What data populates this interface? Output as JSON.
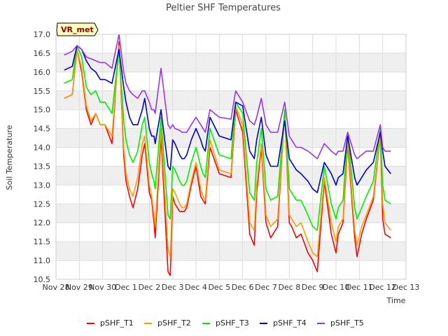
{
  "chart_data": {
    "type": "line",
    "title": "Peltier SHF Temperatures",
    "xlabel": "Time",
    "ylabel": "Soil Temperature",
    "badge": "VR_met",
    "ylim": [
      10.5,
      17.0
    ],
    "xlim": [
      0,
      15
    ],
    "yticks": [
      10.5,
      11.0,
      11.5,
      12.0,
      12.5,
      13.0,
      13.5,
      14.0,
      14.5,
      15.0,
      15.5,
      16.0,
      16.5,
      17.0
    ],
    "ytick_labels": [
      "10.5",
      "11.0",
      "11.5",
      "12.0",
      "12.5",
      "13.0",
      "13.5",
      "14.0",
      "14.5",
      "15.0",
      "15.5",
      "16.0",
      "16.5",
      "17.0"
    ],
    "xticks": [
      0,
      1,
      2,
      3,
      4,
      5,
      6,
      7,
      8,
      9,
      10,
      11,
      12,
      13,
      14,
      15
    ],
    "xtick_labels": [
      "Nov 28",
      "Nov 29",
      "Nov 30",
      "Dec 1",
      "Dec 2",
      "Dec 3",
      "Dec 4",
      "Dec 5",
      "Dec 6",
      "Dec 7",
      "Dec 8",
      "Dec 9",
      "Dec 10",
      "Dec 11",
      "Dec 12",
      "Dec 13"
    ],
    "grid": true,
    "legend_position": "bottom",
    "colors": {
      "band": "#efefef",
      "grid": "#dddddd"
    },
    "series": [
      {
        "name": "pSHF_T1",
        "color": "#ff0000",
        "x": [
          0.35,
          0.7,
          0.9,
          1.1,
          1.3,
          1.5,
          1.7,
          1.9,
          2.1,
          2.4,
          2.7,
          2.9,
          3.0,
          3.15,
          3.3,
          3.5,
          3.7,
          3.8,
          4.0,
          4.1,
          4.2,
          4.25,
          4.5,
          4.8,
          4.9,
          5.0,
          5.1,
          5.3,
          5.4,
          5.5,
          5.6,
          5.8,
          6.0,
          6.2,
          6.3,
          6.4,
          6.6,
          7.0,
          7.5,
          7.7,
          8.0,
          8.3,
          8.5,
          8.6,
          8.8,
          9.0,
          9.2,
          9.5,
          9.8,
          10.0,
          10.1,
          10.3,
          10.5,
          10.8,
          11.0,
          11.2,
          11.5,
          11.8,
          12.0,
          12.1,
          12.3,
          12.5,
          12.8,
          12.9,
          13.1,
          13.3,
          13.6,
          13.9,
          14.0,
          14.1,
          14.35
        ],
        "y": [
          15.3,
          15.4,
          16.6,
          16.0,
          15.0,
          14.6,
          14.9,
          14.6,
          14.6,
          14.1,
          16.8,
          13.8,
          13.1,
          12.7,
          12.4,
          12.9,
          13.8,
          14.1,
          12.8,
          12.6,
          12.0,
          11.6,
          14.3,
          10.7,
          10.6,
          12.7,
          12.5,
          12.3,
          12.3,
          12.3,
          12.4,
          13.0,
          13.5,
          12.7,
          12.6,
          12.5,
          14.0,
          13.3,
          13.2,
          15.0,
          14.4,
          11.7,
          11.4,
          12.8,
          14.0,
          12.0,
          11.6,
          11.9,
          15.0,
          12.0,
          11.9,
          11.6,
          11.7,
          11.2,
          11.0,
          10.7,
          13.1,
          11.7,
          11.2,
          11.7,
          12.0,
          14.1,
          11.6,
          11.1,
          11.7,
          12.1,
          12.6,
          14.3,
          12.1,
          11.7,
          11.6
        ]
      },
      {
        "name": "pSHF_T2",
        "color": "#ff9900",
        "x": [
          0.35,
          0.7,
          0.9,
          1.1,
          1.3,
          1.5,
          1.7,
          1.9,
          2.1,
          2.4,
          2.7,
          2.9,
          3.0,
          3.15,
          3.3,
          3.5,
          3.7,
          3.8,
          4.0,
          4.1,
          4.2,
          4.25,
          4.5,
          4.8,
          4.9,
          5.0,
          5.1,
          5.3,
          5.4,
          5.5,
          5.6,
          5.8,
          6.0,
          6.2,
          6.3,
          6.4,
          6.6,
          7.0,
          7.5,
          7.7,
          8.0,
          8.3,
          8.5,
          8.6,
          8.8,
          9.0,
          9.2,
          9.5,
          9.8,
          10.0,
          10.1,
          10.3,
          10.5,
          10.8,
          11.0,
          11.2,
          11.5,
          11.8,
          12.0,
          12.1,
          12.3,
          12.5,
          12.8,
          12.9,
          13.1,
          13.3,
          13.6,
          13.9,
          14.0,
          14.1,
          14.35
        ],
        "y": [
          15.3,
          15.4,
          16.6,
          16.1,
          15.1,
          14.7,
          14.9,
          14.6,
          14.6,
          14.3,
          16.7,
          14.0,
          13.3,
          12.9,
          12.7,
          13.2,
          14.1,
          14.3,
          13.0,
          12.7,
          12.2,
          11.9,
          14.5,
          11.3,
          11.1,
          12.9,
          12.8,
          12.5,
          12.4,
          12.4,
          12.5,
          13.1,
          13.6,
          12.9,
          12.7,
          12.6,
          14.2,
          13.4,
          13.3,
          15.1,
          14.6,
          12.0,
          11.8,
          13.0,
          14.1,
          12.2,
          11.9,
          12.1,
          15.0,
          12.2,
          12.1,
          11.9,
          12.0,
          11.5,
          11.2,
          11.1,
          13.2,
          12.0,
          11.5,
          11.9,
          12.1,
          14.2,
          11.8,
          11.4,
          11.9,
          12.2,
          12.7,
          14.3,
          12.5,
          12.0,
          11.8
        ]
      },
      {
        "name": "pSHF_T3",
        "color": "#00ee00",
        "x": [
          0.35,
          0.7,
          0.9,
          1.1,
          1.3,
          1.5,
          1.7,
          1.9,
          2.1,
          2.4,
          2.7,
          2.9,
          3.0,
          3.15,
          3.3,
          3.5,
          3.7,
          3.8,
          4.0,
          4.1,
          4.2,
          4.25,
          4.5,
          4.8,
          4.9,
          5.0,
          5.1,
          5.3,
          5.4,
          5.5,
          5.6,
          5.8,
          6.0,
          6.2,
          6.3,
          6.4,
          6.6,
          7.0,
          7.5,
          7.7,
          8.0,
          8.3,
          8.5,
          8.6,
          8.8,
          9.0,
          9.2,
          9.5,
          9.8,
          10.0,
          10.1,
          10.3,
          10.5,
          10.8,
          11.0,
          11.2,
          11.5,
          11.8,
          12.0,
          12.1,
          12.3,
          12.5,
          12.8,
          12.9,
          13.1,
          13.3,
          13.6,
          13.9,
          14.0,
          14.1,
          14.35
        ],
        "y": [
          15.7,
          15.8,
          16.7,
          16.4,
          15.6,
          15.4,
          15.5,
          15.2,
          15.2,
          14.9,
          16.6,
          14.7,
          14.2,
          13.8,
          13.6,
          13.9,
          14.6,
          14.8,
          13.6,
          13.3,
          13.1,
          12.9,
          14.8,
          12.2,
          12.1,
          13.5,
          13.4,
          13.1,
          13.0,
          13.0,
          13.1,
          13.6,
          14.0,
          13.5,
          13.3,
          13.2,
          14.5,
          13.8,
          13.7,
          15.2,
          14.9,
          12.8,
          12.6,
          13.6,
          14.5,
          12.9,
          12.6,
          12.7,
          15.0,
          12.9,
          12.8,
          12.6,
          12.6,
          12.2,
          11.9,
          11.8,
          13.5,
          12.5,
          12.1,
          12.4,
          12.6,
          14.4,
          12.4,
          12.1,
          12.4,
          12.7,
          13.1,
          14.5,
          13.0,
          12.6,
          12.5
        ]
      },
      {
        "name": "pSHF_T4",
        "color": "#0000cc",
        "x": [
          0.35,
          0.7,
          0.9,
          1.1,
          1.3,
          1.5,
          1.7,
          1.9,
          2.1,
          2.4,
          2.7,
          2.9,
          3.0,
          3.15,
          3.3,
          3.5,
          3.7,
          3.8,
          4.0,
          4.1,
          4.2,
          4.25,
          4.5,
          4.8,
          4.9,
          5.0,
          5.1,
          5.3,
          5.4,
          5.5,
          5.6,
          5.8,
          6.0,
          6.2,
          6.3,
          6.4,
          6.6,
          7.0,
          7.5,
          7.7,
          8.0,
          8.3,
          8.5,
          8.6,
          8.8,
          9.0,
          9.2,
          9.5,
          9.8,
          10.0,
          10.1,
          10.3,
          10.5,
          10.8,
          11.0,
          11.2,
          11.5,
          11.8,
          12.0,
          12.1,
          12.3,
          12.5,
          12.8,
          12.9,
          13.1,
          13.3,
          13.6,
          13.9,
          14.0,
          14.1,
          14.35
        ],
        "y": [
          16.05,
          16.15,
          16.7,
          16.6,
          16.3,
          16.1,
          16.0,
          15.8,
          15.8,
          15.7,
          16.6,
          15.6,
          15.2,
          14.8,
          14.6,
          14.6,
          15.0,
          15.3,
          14.5,
          14.3,
          14.3,
          14.1,
          15.0,
          13.5,
          13.4,
          14.2,
          14.1,
          13.8,
          13.7,
          13.7,
          13.8,
          14.2,
          14.5,
          14.2,
          14.0,
          13.9,
          14.8,
          14.3,
          14.2,
          15.2,
          15.1,
          13.9,
          13.7,
          14.2,
          14.8,
          13.8,
          13.5,
          13.5,
          14.7,
          13.7,
          13.6,
          13.4,
          13.3,
          13.1,
          12.9,
          12.8,
          13.6,
          13.3,
          13.0,
          13.2,
          13.3,
          14.3,
          13.2,
          13.0,
          13.2,
          13.4,
          13.6,
          14.4,
          13.9,
          13.5,
          13.3
        ]
      },
      {
        "name": "pSHF_T5",
        "color": "#9933ee",
        "x": [
          0.35,
          0.7,
          0.9,
          1.1,
          1.3,
          1.5,
          1.7,
          1.9,
          2.1,
          2.4,
          2.7,
          2.9,
          3.0,
          3.15,
          3.3,
          3.5,
          3.7,
          3.8,
          4.0,
          4.1,
          4.2,
          4.25,
          4.5,
          4.8,
          4.9,
          5.0,
          5.1,
          5.3,
          5.4,
          5.5,
          5.6,
          5.8,
          6.0,
          6.2,
          6.3,
          6.4,
          6.6,
          7.0,
          7.5,
          7.7,
          8.0,
          8.3,
          8.5,
          8.6,
          8.8,
          9.0,
          9.2,
          9.5,
          9.8,
          10.0,
          10.1,
          10.3,
          10.5,
          10.8,
          11.0,
          11.2,
          11.5,
          11.8,
          12.0,
          12.1,
          12.3,
          12.5,
          12.8,
          12.9,
          13.1,
          13.3,
          13.6,
          13.9,
          14.0,
          14.1,
          14.35
        ],
        "y": [
          16.45,
          16.55,
          16.7,
          16.6,
          16.4,
          16.35,
          16.3,
          16.25,
          16.25,
          16.1,
          17.0,
          16.0,
          15.7,
          15.5,
          15.4,
          15.3,
          15.5,
          15.5,
          15.2,
          15.0,
          15.0,
          14.9,
          16.1,
          14.6,
          14.5,
          14.6,
          14.5,
          14.45,
          14.4,
          14.4,
          14.4,
          14.6,
          14.8,
          14.6,
          14.5,
          14.4,
          15.0,
          14.8,
          14.75,
          15.5,
          15.2,
          14.7,
          14.6,
          14.8,
          15.3,
          14.6,
          14.4,
          14.4,
          15.2,
          14.3,
          14.2,
          14.0,
          14.0,
          13.9,
          13.8,
          13.7,
          14.1,
          13.9,
          13.8,
          13.9,
          13.9,
          14.4,
          13.8,
          13.7,
          13.8,
          13.9,
          13.9,
          14.6,
          14.0,
          13.9,
          13.9
        ]
      }
    ]
  }
}
